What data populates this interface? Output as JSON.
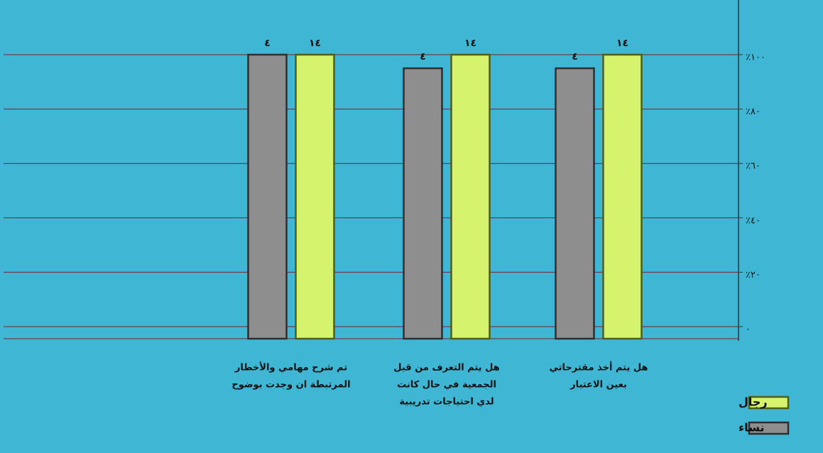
{
  "chart_data": {
    "type": "bar",
    "categories": [
      [
        "هل يتم أخذ مقترحاتي",
        "بعين الاعتبار"
      ],
      [
        "هل يتم التعرف من قبل",
        "الجمعية في حال كانت",
        "لدي احتياجات تدريبية"
      ],
      [
        "تم شرح مهامي والأخطار",
        "المرتبطة ان وجدت بوضوح"
      ]
    ],
    "series": [
      {
        "name": "رجال",
        "color": "#d6f36e",
        "values": [
          100,
          100,
          100
        ],
        "data_labels": [
          "١٤",
          "١٤",
          "١٤"
        ]
      },
      {
        "name": "نساء",
        "color": "#8e8e8e",
        "values": [
          95,
          95,
          100
        ],
        "data_labels": [
          "٤",
          "٤",
          "٤"
        ]
      }
    ],
    "ylim": [
      0,
      100
    ],
    "yticks": [
      {
        "value": 0,
        "label": "٠"
      },
      {
        "value": 20,
        "label": "٪٢٠"
      },
      {
        "value": 40,
        "label": "٪٤٠"
      },
      {
        "value": 60,
        "label": "٪٦٠"
      },
      {
        "value": 80,
        "label": "٪٨٠"
      },
      {
        "value": 100,
        "label": "٪١٠٠"
      }
    ],
    "grid": true,
    "legend": "bottom-right"
  }
}
